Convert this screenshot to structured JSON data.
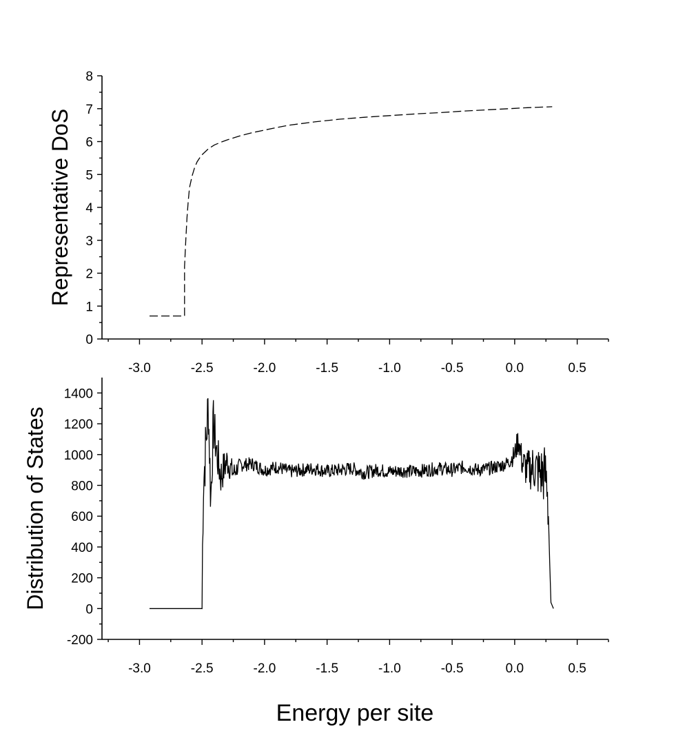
{
  "chart_data": [
    {
      "type": "line",
      "ylabel": "Representative DoS",
      "xlim": [
        -3.3,
        0.75
      ],
      "ylim": [
        0,
        8
      ],
      "xticks": [
        -3.0,
        -2.5,
        -2.0,
        -1.5,
        -1.0,
        -0.5,
        0.0,
        0.5
      ],
      "xtick_labels": [
        "-3.0",
        "-2.5",
        "-2.0",
        "-1.5",
        "-1.0",
        "-0.5",
        "0.0",
        "0.5"
      ],
      "yticks": [
        0,
        1,
        2,
        3,
        4,
        5,
        6,
        7,
        8
      ],
      "ytick_labels": [
        "0",
        "1",
        "2",
        "3",
        "4",
        "5",
        "6",
        "7",
        "8"
      ],
      "grid": false,
      "series": [
        {
          "style": "dashed",
          "x": [
            -2.92,
            -2.64,
            -2.64,
            -2.63,
            -2.62,
            -2.61,
            -2.6,
            -2.58,
            -2.56,
            -2.54,
            -2.52,
            -2.5,
            -2.45,
            -2.4,
            -2.35,
            -2.3,
            -2.2,
            -2.1,
            -2.0,
            -1.9,
            -1.8,
            -1.6,
            -1.4,
            -1.2,
            -1.0,
            -0.8,
            -0.6,
            -0.4,
            -0.2,
            0.0,
            0.1,
            0.3
          ],
          "y": [
            0.7,
            0.7,
            2.2,
            3.0,
            3.7,
            4.2,
            4.6,
            4.95,
            5.2,
            5.38,
            5.5,
            5.6,
            5.78,
            5.9,
            5.98,
            6.05,
            6.17,
            6.27,
            6.35,
            6.43,
            6.5,
            6.6,
            6.68,
            6.74,
            6.79,
            6.84,
            6.88,
            6.93,
            6.97,
            7.01,
            7.03,
            7.06
          ]
        }
      ]
    },
    {
      "type": "line",
      "ylabel": "Distribution of States",
      "xlabel": "Energy per site",
      "xlim": [
        -3.3,
        0.75
      ],
      "ylim": [
        -200,
        1500
      ],
      "xticks": [
        -3.0,
        -2.5,
        -2.0,
        -1.5,
        -1.0,
        -0.5,
        0.0,
        0.5
      ],
      "xtick_labels": [
        "-3.0",
        "-2.5",
        "-2.0",
        "-1.5",
        "-1.0",
        "-0.5",
        "0.0",
        "0.5"
      ],
      "yticks": [
        -200,
        0,
        200,
        400,
        600,
        800,
        1000,
        1200,
        1400
      ],
      "ytick_labels": [
        "-200",
        "0",
        "200",
        "400",
        "600",
        "800",
        "1000",
        "1200",
        "1400"
      ],
      "grid": false,
      "series": [
        {
          "style": "noisy",
          "x": [
            -2.92,
            -2.5,
            -2.5,
            -2.49,
            -2.47,
            -2.45,
            -2.43,
            -2.41,
            -2.38,
            -2.35,
            -2.3,
            -2.25,
            -2.2,
            -2.1,
            -2.0,
            -1.9,
            -1.8,
            -1.7,
            -1.6,
            -1.5,
            -1.4,
            -1.3,
            -1.2,
            -1.1,
            -1.0,
            -0.9,
            -0.8,
            -0.7,
            -0.6,
            -0.5,
            -0.4,
            -0.3,
            -0.2,
            -0.1,
            -0.05,
            0.0,
            0.03,
            0.06,
            0.1,
            0.15,
            0.2,
            0.24,
            0.26,
            0.27,
            0.28,
            0.29,
            0.31
          ],
          "y": [
            0,
            0,
            120,
            800,
            1050,
            1340,
            700,
            1200,
            1000,
            860,
            960,
            880,
            930,
            940,
            900,
            920,
            890,
            900,
            910,
            890,
            900,
            910,
            880,
            900,
            890,
            895,
            890,
            900,
            910,
            900,
            920,
            900,
            910,
            930,
            950,
            1000,
            1100,
            950,
            900,
            920,
            880,
            870,
            830,
            600,
            300,
            40,
            0
          ]
        }
      ]
    }
  ]
}
